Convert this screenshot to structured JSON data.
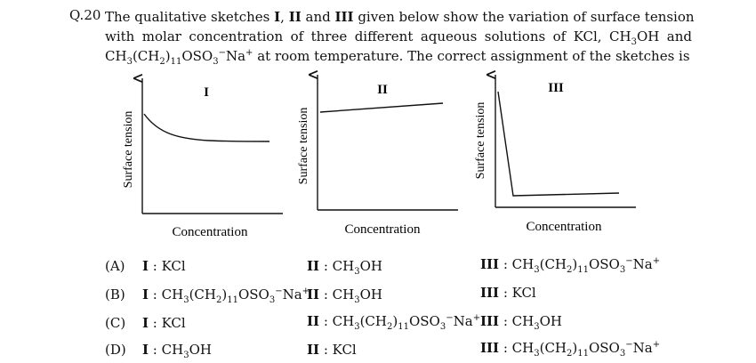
{
  "question": {
    "number": "Q.20",
    "text_line1": "The qualitative sketches I, II and III given below show the variation of surface tension",
    "text_line2": "with molar concentration of three different aqueous solutions of KCl, CH3OH and",
    "text_line3": "CH3(CH2)11OSO3⁻Na⁺ at room temperature. The correct assignment of the sketches is"
  },
  "sketches": [
    {
      "label": "I",
      "ylabel": "Surface tension",
      "xlabel": "Concentration",
      "shape": "gradual decrease, levelling off"
    },
    {
      "label": "II",
      "ylabel": "Surface tension",
      "xlabel": "Concentration",
      "shape": "slight linear increase"
    },
    {
      "label": "III",
      "ylabel": "Surface tension",
      "xlabel": "Concentration",
      "shape": "sharp drop then constant"
    }
  ],
  "options": [
    {
      "key": "(A)",
      "I": "KCl",
      "II": "CH3OH",
      "III": "CH3(CH2)11OSO3⁻Na⁺"
    },
    {
      "key": "(B)",
      "I": "CH3(CH2)11OSO3⁻Na⁺",
      "II": "CH3OH",
      "III": "KCl"
    },
    {
      "key": "(C)",
      "I": "KCl",
      "II": "CH3(CH2)11OSO3⁻Na⁺",
      "III": "CH3OH"
    },
    {
      "key": "(D)",
      "I": "CH3OH",
      "II": "KCl",
      "III": "CH3(CH2)11OSO3⁻Na⁺"
    }
  ]
}
